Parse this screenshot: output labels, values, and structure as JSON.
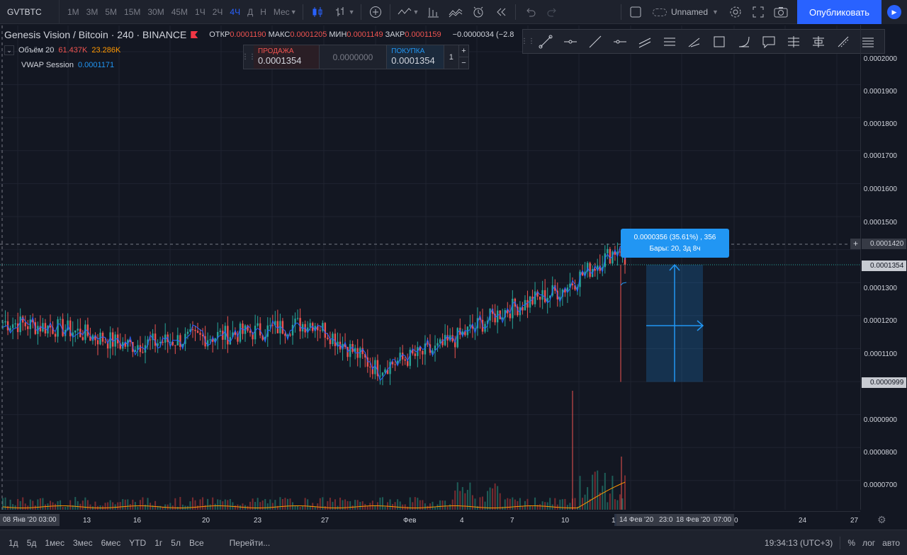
{
  "toolbar": {
    "symbol": "GVTBTC",
    "intervals": [
      "1М",
      "3М",
      "5М",
      "15М",
      "30М",
      "45М",
      "1Ч",
      "2Ч",
      "4Ч",
      "Д",
      "Н",
      "Мес"
    ],
    "active_interval": "4Ч",
    "layout_name": "Unnamed",
    "publish_label": "Опубликовать",
    "icons": [
      "candles-icon",
      "indicators-icon",
      "add-icon",
      "compare-icon",
      "financials-icon",
      "templates-icon",
      "alert-icon",
      "replay-icon",
      "undo-icon",
      "redo-icon",
      "layout-icon",
      "settings-icon",
      "fullscreen-icon",
      "camera-icon",
      "play-icon"
    ]
  },
  "legend": {
    "title": "Genesis Vision / Bitcoin · 240 · BINANCE",
    "ohlc": [
      {
        "label": "ОТКР",
        "value": "0.0001190"
      },
      {
        "label": "МАКС",
        "value": "0.0001205"
      },
      {
        "label": "МИН",
        "value": "0.0001149"
      },
      {
        "label": "ЗАКР",
        "value": "0.0001159"
      }
    ],
    "change": "−0.0000034 (−2.8",
    "volume": {
      "label": "Объём 20",
      "v1": "61.437K",
      "v2": "23.286K"
    },
    "vwap": {
      "label": "VWAP Session",
      "value": "0.0001171"
    }
  },
  "trade": {
    "sell_label": "ПРОДАЖА",
    "sell_price": "0.0001354",
    "spread": "0.0000000",
    "buy_label": "ПОКУПКА",
    "buy_price": "0.0001354",
    "qty": "1",
    "plus": "+",
    "minus": "−"
  },
  "measure_tip": {
    "line1": "0.0000356 (35.61%) , 356",
    "line2": "Бары: 20, 3д 8ч"
  },
  "yaxis": {
    "labels": [
      "0.0002000",
      "0.0001900",
      "0.0001800",
      "0.0001700",
      "0.0001600",
      "0.0001500",
      "0.0001300",
      "0.0001200",
      "0.0001100",
      "0.0000900",
      "0.0000800",
      "0.0000700"
    ],
    "crosshair": "0.0001420",
    "last": "0.0001354",
    "low": "0.0000999"
  },
  "xaxis": {
    "labels": [
      "13",
      "16",
      "20",
      "23",
      "27",
      "Фев",
      "4",
      "7",
      "10",
      "1",
      "0",
      "24",
      "27"
    ],
    "tag_left": "08 Янв '20   03:00",
    "range_start": "14 Фев '20",
    "range_mid": "23:0",
    "range_end": "18 Фев '20",
    "range_time": "07:00"
  },
  "bottom": {
    "ranges": [
      "1д",
      "5д",
      "1мес",
      "3мес",
      "6мес",
      "YTD",
      "1г",
      "5л",
      "Все"
    ],
    "goto": "Перейти...",
    "time": "19:34:13 (UTC+3)",
    "percent": "%",
    "log": "лог",
    "auto": "авто"
  },
  "chart_data": {
    "type": "candlestick",
    "price_range": [
      6.5e-05,
      0.0002
    ],
    "categories": [
      "08 Янв",
      "13",
      "16",
      "20",
      "23",
      "27",
      "Фев",
      "4",
      "7",
      "10",
      "14 Фев"
    ],
    "values": [
      0.000118,
      0.000116,
      0.000111,
      0.000113,
      0.000115,
      0.000118,
      0.000104,
      0.00011,
      0.000121,
      0.000128,
      0.000142
    ],
    "last_price": 0.0001354,
    "measurement": {
      "from": 9.99e-05,
      "to": 0.0001354,
      "change_pct": 35.61
    }
  },
  "colors": {
    "up": "#26a69a",
    "down": "#ef5350",
    "accent": "#2962ff",
    "tooltip": "#2196f3",
    "vwap": "#2962ff",
    "volume_ma": "#ff9800"
  }
}
